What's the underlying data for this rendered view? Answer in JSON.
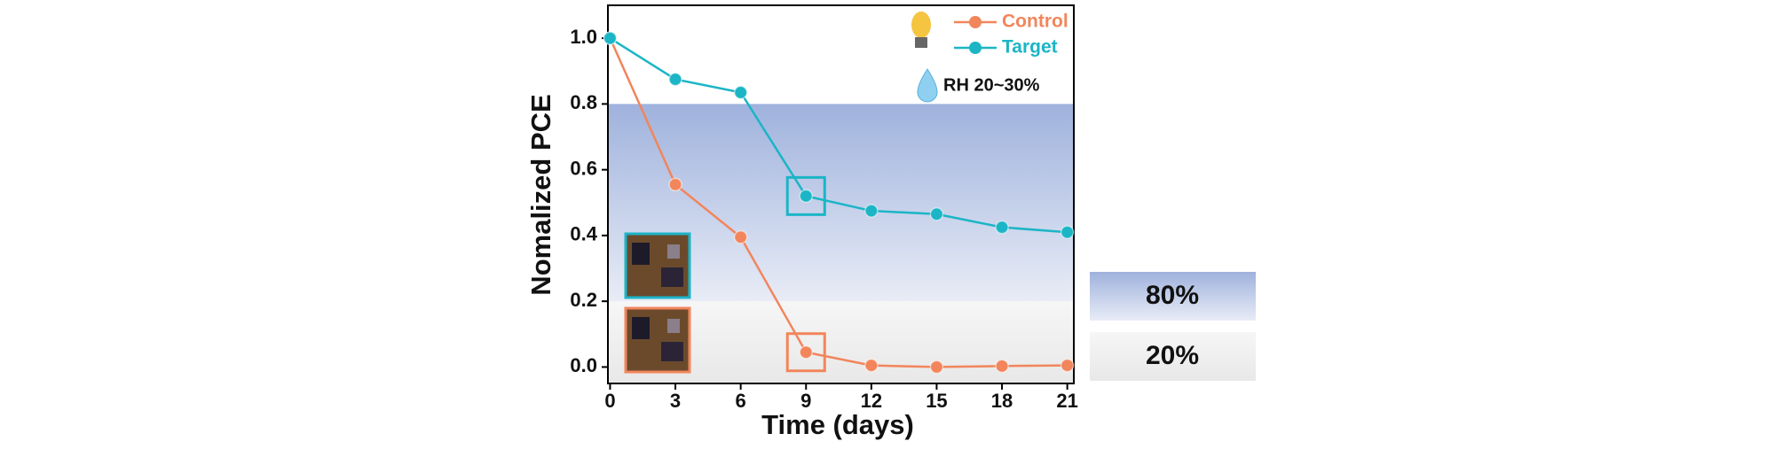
{
  "chart_data": {
    "type": "line",
    "x_label": "Time (days)",
    "y_label": "Nomalized PCE",
    "x": [
      0,
      3,
      6,
      9,
      12,
      15,
      18,
      21
    ],
    "series": [
      {
        "name": "Control",
        "color": "#f2855b",
        "values": [
          1.0,
          0.555,
          0.395,
          0.045,
          0.005,
          0.0,
          0.003,
          0.005
        ]
      },
      {
        "name": "Target",
        "color": "#1bb5c6",
        "values": [
          1.0,
          0.875,
          0.835,
          0.52,
          0.475,
          0.465,
          0.425,
          0.41
        ]
      }
    ],
    "xlim": [
      -0.1,
      21.3
    ],
    "ylim": [
      -0.05,
      1.1
    ],
    "xticks": [
      0,
      3,
      6,
      9,
      12,
      15,
      18,
      21
    ],
    "yticks": [
      {
        "value": 0,
        "label": "0.0"
      },
      {
        "value": 0.2,
        "label": "0.2"
      },
      {
        "value": 0.4,
        "label": "0.4"
      },
      {
        "value": 0.6,
        "label": "0.6"
      },
      {
        "value": 0.8,
        "label": "0.8"
      },
      {
        "value": 1,
        "label": "1.0"
      }
    ],
    "bands": [
      {
        "label": "80%",
        "from": 0.2,
        "to": 0.8,
        "color": "#9fb2dd"
      },
      {
        "label": "20%",
        "from": -0.05,
        "to": 0.2,
        "color": "#ececec"
      }
    ],
    "annotation": "RH 20~30%",
    "legend": "upper right"
  }
}
